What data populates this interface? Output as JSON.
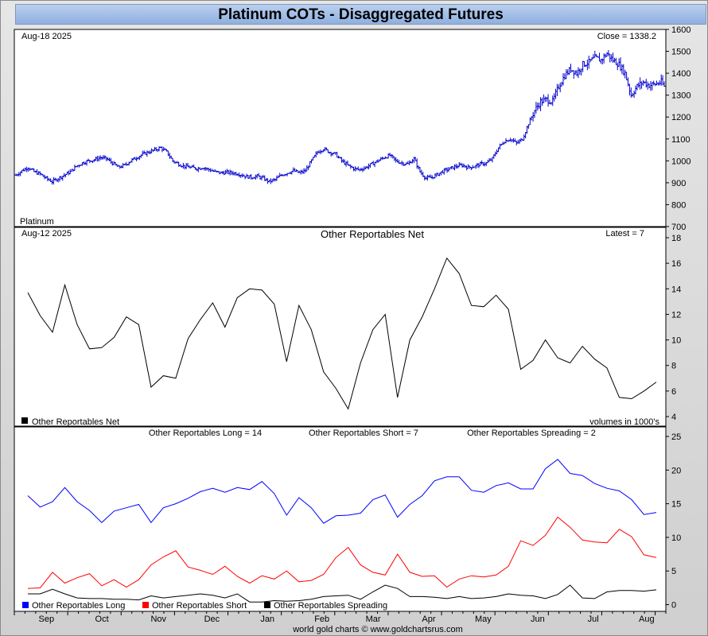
{
  "title": "Platinum COTs - Disaggregated Futures",
  "footer": "world gold charts © www.goldchartsrus.com",
  "chart_data": [
    {
      "id": "price",
      "type": "ohlc",
      "date_label": "Aug-18  2025",
      "close_label": "Close = 1338.2",
      "series_label": "Platinum",
      "color": "#0000cc",
      "ylim": [
        700,
        1600
      ],
      "yticks": [
        "700",
        "800",
        "900",
        "1000",
        "1100",
        "1200",
        "1300",
        "1400",
        "1500",
        "1600"
      ],
      "ytick_values": [
        700,
        800,
        900,
        1000,
        1100,
        1200,
        1300,
        1400,
        1500,
        1600
      ],
      "close_points": [
        [
          0,
          935
        ],
        [
          4,
          955
        ],
        [
          8,
          970
        ],
        [
          12,
          950
        ],
        [
          16,
          940
        ],
        [
          20,
          920
        ],
        [
          24,
          905
        ],
        [
          28,
          920
        ],
        [
          32,
          935
        ],
        [
          36,
          950
        ],
        [
          40,
          975
        ],
        [
          44,
          990
        ],
        [
          48,
          1000
        ],
        [
          52,
          1005
        ],
        [
          56,
          1015
        ],
        [
          60,
          1010
        ],
        [
          64,
          990
        ],
        [
          68,
          970
        ],
        [
          72,
          980
        ],
        [
          76,
          1000
        ],
        [
          80,
          1015
        ],
        [
          84,
          1030
        ],
        [
          88,
          1040
        ],
        [
          92,
          1050
        ],
        [
          96,
          1060
        ],
        [
          100,
          1040
        ],
        [
          104,
          1000
        ],
        [
          108,
          985
        ],
        [
          112,
          975
        ],
        [
          116,
          970
        ],
        [
          120,
          965
        ],
        [
          124,
          970
        ],
        [
          128,
          960
        ],
        [
          132,
          950
        ],
        [
          136,
          945
        ],
        [
          140,
          948
        ],
        [
          144,
          945
        ],
        [
          148,
          940
        ],
        [
          152,
          930
        ],
        [
          156,
          925
        ],
        [
          160,
          930
        ],
        [
          164,
          920
        ],
        [
          168,
          905
        ],
        [
          172,
          915
        ],
        [
          176,
          935
        ],
        [
          180,
          945
        ],
        [
          184,
          955
        ],
        [
          188,
          945
        ],
        [
          192,
          955
        ],
        [
          196,
          1000
        ],
        [
          200,
          1040
        ],
        [
          204,
          1055
        ],
        [
          208,
          1040
        ],
        [
          212,
          1030
        ],
        [
          216,
          1000
        ],
        [
          220,
          980
        ],
        [
          224,
          965
        ],
        [
          228,
          960
        ],
        [
          232,
          970
        ],
        [
          236,
          985
        ],
        [
          240,
          1000
        ],
        [
          244,
          1015
        ],
        [
          248,
          1025
        ],
        [
          252,
          1000
        ],
        [
          256,
          990
        ],
        [
          260,
          985
        ],
        [
          264,
          1010
        ],
        [
          268,
          950
        ],
        [
          272,
          920
        ],
        [
          276,
          925
        ],
        [
          280,
          940
        ],
        [
          284,
          955
        ],
        [
          288,
          965
        ],
        [
          292,
          975
        ],
        [
          296,
          980
        ],
        [
          300,
          970
        ],
        [
          304,
          975
        ],
        [
          308,
          985
        ],
        [
          312,
          990
        ],
        [
          316,
          1010
        ],
        [
          320,
          1060
        ],
        [
          324,
          1090
        ],
        [
          328,
          1100
        ],
        [
          332,
          1080
        ],
        [
          336,
          1100
        ],
        [
          340,
          1170
        ],
        [
          344,
          1230
        ],
        [
          348,
          1270
        ],
        [
          352,
          1280
        ],
        [
          356,
          1270
        ],
        [
          360,
          1340
        ],
        [
          364,
          1390
        ],
        [
          368,
          1420
        ],
        [
          372,
          1400
        ],
        [
          376,
          1440
        ],
        [
          380,
          1450
        ],
        [
          384,
          1470
        ],
        [
          388,
          1460
        ],
        [
          392,
          1490
        ],
        [
          396,
          1460
        ],
        [
          400,
          1440
        ],
        [
          404,
          1400
        ],
        [
          408,
          1300
        ],
        [
          412,
          1340
        ],
        [
          416,
          1360
        ],
        [
          420,
          1345
        ],
        [
          424,
          1350
        ],
        [
          428,
          1360
        ],
        [
          430,
          1338
        ]
      ]
    },
    {
      "id": "net",
      "type": "line",
      "date_label": "Aug-12  2025",
      "title": "Other Reportables Net",
      "latest_label": "Latest = 7",
      "legend_label": "Other Reportables Net",
      "units_label": "volumes in 1000's",
      "color": "#000000",
      "ylim": [
        4,
        18
      ],
      "yticks": [
        "4",
        "6",
        "8",
        "10",
        "12",
        "14",
        "16",
        "18"
      ],
      "ytick_values": [
        4,
        6,
        8,
        10,
        12,
        14,
        16,
        18
      ],
      "x": [
        0,
        1,
        2,
        3,
        4,
        5,
        6,
        7,
        8,
        9,
        10,
        11,
        12,
        13,
        14,
        15,
        16,
        17,
        18,
        19,
        20,
        21,
        22,
        23,
        24,
        25,
        26,
        27,
        28,
        29,
        30,
        31,
        32,
        33,
        34,
        35,
        36,
        37,
        38,
        39,
        40,
        41,
        42,
        43,
        44,
        45,
        46,
        47,
        48,
        49,
        50,
        51
      ],
      "values": [
        13.7,
        11.9,
        10.6,
        14.3,
        11.2,
        9.3,
        9.4,
        10.2,
        11.8,
        11.2,
        6.3,
        7.2,
        7.0,
        10.1,
        11.6,
        12.9,
        11.0,
        13.3,
        14.0,
        13.9,
        12.8,
        8.3,
        12.7,
        10.8,
        7.5,
        6.2,
        4.6,
        8.2,
        10.8,
        12.0,
        5.5,
        10.0,
        11.8,
        14.0,
        16.4,
        15.2,
        12.7,
        12.6,
        13.5,
        12.4,
        7.7,
        8.4,
        10.0,
        8.6,
        8.2,
        9.5,
        8.5,
        7.8,
        5.5,
        5.4,
        6.0,
        6.7
      ]
    },
    {
      "id": "positions",
      "type": "line",
      "legend": [
        "Other Reportables Long",
        "Other Reportables Short",
        "Other Reportables Spreading"
      ],
      "header_labels": [
        "Other Reportables Long = 14",
        "Other Reportables Short = 7",
        "Other Reportables Spreading = 2"
      ],
      "colors": [
        "#0000ff",
        "#ff0000",
        "#000000"
      ],
      "ylim": [
        -1,
        25
      ],
      "yticks": [
        "0",
        "5",
        "10",
        "15",
        "20",
        "25"
      ],
      "ytick_values": [
        0,
        5,
        10,
        15,
        20,
        25
      ],
      "x": [
        0,
        1,
        2,
        3,
        4,
        5,
        6,
        7,
        8,
        9,
        10,
        11,
        12,
        13,
        14,
        15,
        16,
        17,
        18,
        19,
        20,
        21,
        22,
        23,
        24,
        25,
        26,
        27,
        28,
        29,
        30,
        31,
        32,
        33,
        34,
        35,
        36,
        37,
        38,
        39,
        40,
        41,
        42,
        43,
        44,
        45,
        46,
        47,
        48,
        49,
        50,
        51
      ],
      "series": [
        {
          "name": "Other Reportables Long",
          "values": [
            16.2,
            14.5,
            15.3,
            17.4,
            15.3,
            14.0,
            12.2,
            13.9,
            14.4,
            14.9,
            12.2,
            14.4,
            15.0,
            15.8,
            16.8,
            17.3,
            16.7,
            17.4,
            17.1,
            18.3,
            16.5,
            13.3,
            15.9,
            14.4,
            12.1,
            13.2,
            13.3,
            13.6,
            15.6,
            16.3,
            13.0,
            14.9,
            16.2,
            18.4,
            19.0,
            19.0,
            17.0,
            16.7,
            17.7,
            18.1,
            17.2,
            17.2,
            20.2,
            21.6,
            19.5,
            19.2,
            18.0,
            17.3,
            16.9,
            15.6,
            13.4,
            13.7
          ]
        },
        {
          "name": "Other Reportables Short",
          "values": [
            2.4,
            2.5,
            4.8,
            3.2,
            4.0,
            4.6,
            2.8,
            3.7,
            2.6,
            3.7,
            5.9,
            7.1,
            8.0,
            5.6,
            5.1,
            4.5,
            5.7,
            4.2,
            3.2,
            4.3,
            3.8,
            5.0,
            3.4,
            3.6,
            4.5,
            7.0,
            8.5,
            5.9,
            4.8,
            4.4,
            7.5,
            4.8,
            4.2,
            4.3,
            2.6,
            3.8,
            4.3,
            4.1,
            4.4,
            5.7,
            9.5,
            8.8,
            10.3,
            13.0,
            11.5,
            9.6,
            9.3,
            9.2,
            11.2,
            10.1,
            7.4,
            7.0
          ]
        },
        {
          "name": "Other Reportables Spreading",
          "values": [
            1.6,
            1.6,
            2.3,
            1.6,
            1.0,
            0.9,
            0.9,
            0.8,
            0.8,
            0.7,
            1.3,
            1.0,
            1.2,
            1.4,
            1.6,
            1.4,
            1.0,
            1.6,
            0.4,
            0.4,
            0.6,
            0.5,
            0.6,
            0.8,
            1.2,
            1.3,
            1.4,
            0.8,
            1.9,
            2.9,
            2.4,
            1.2,
            1.2,
            1.1,
            0.9,
            1.2,
            0.9,
            1.0,
            1.2,
            1.6,
            1.4,
            1.3,
            0.9,
            1.5,
            2.9,
            1.0,
            0.9,
            1.9,
            2.1,
            2.1,
            2.0,
            2.2
          ]
        }
      ],
      "month_labels": [
        "Sep",
        "Oct",
        "Nov",
        "Dec",
        "Jan",
        "Feb",
        "Mar",
        "Apr",
        "May",
        "Jun",
        "Jul",
        "Aug"
      ],
      "month_positions": [
        3,
        8.2,
        13.5,
        18.5,
        23.7,
        28.8,
        33.6,
        38.8,
        43.9,
        49,
        54.2,
        59.2
      ]
    }
  ]
}
